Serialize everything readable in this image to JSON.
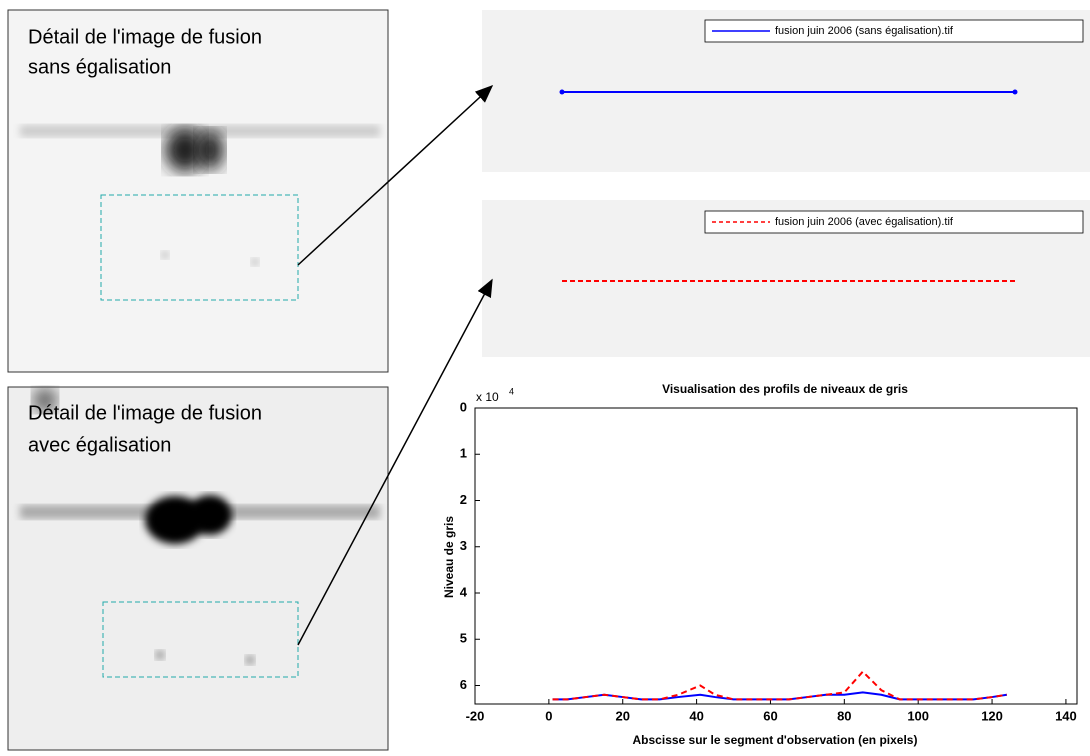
{
  "panels": {
    "top_label": [
      "Détail de l'image de fusion",
      "sans égalisation"
    ],
    "bottom_label": [
      "Détail de l'image de fusion",
      "avec égalisation"
    ],
    "legend_top": "fusion juin 2006 (sans égalisation).tif",
    "legend_bottom": "fusion juin 2006 (avec égalisation).tif"
  },
  "chart_data": {
    "type": "line",
    "title": "Visualisation des profils de niveaux de gris",
    "x_label": "Abscisse sur le segment d'observation (en pixels)",
    "y_label": "Niveau de gris",
    "y_multiplier": "x 10",
    "y_multiplier_exp": "4",
    "x": [
      1,
      5,
      10,
      15,
      20,
      25,
      30,
      35,
      41,
      45,
      50,
      55,
      60,
      65,
      70,
      75,
      80,
      85,
      90,
      95,
      100,
      105,
      110,
      115,
      120,
      124
    ],
    "series": [
      {
        "name": "fusion juin 2006 (sans égalisation).tif",
        "color": "#0000ff",
        "dash": false,
        "values": [
          6.3,
          6.3,
          6.25,
          6.2,
          6.25,
          6.3,
          6.3,
          6.25,
          6.2,
          6.25,
          6.3,
          6.3,
          6.3,
          6.3,
          6.25,
          6.2,
          6.2,
          6.15,
          6.2,
          6.3,
          6.3,
          6.3,
          6.3,
          6.3,
          6.25,
          6.2
        ]
      },
      {
        "name": "fusion juin 2006 (avec égalisation).tif",
        "color": "#ff0000",
        "dash": true,
        "values": [
          6.3,
          6.3,
          6.25,
          6.2,
          6.25,
          6.3,
          6.3,
          6.2,
          6.0,
          6.2,
          6.3,
          6.3,
          6.3,
          6.3,
          6.25,
          6.2,
          6.15,
          5.7,
          6.1,
          6.3,
          6.3,
          6.3,
          6.3,
          6.3,
          6.25,
          6.2
        ]
      }
    ],
    "xlim": [
      -20,
      143
    ],
    "ylim": [
      0,
      6.4
    ],
    "y_reversed": true,
    "xticks": [
      -20,
      0,
      20,
      40,
      60,
      80,
      100,
      120,
      140
    ],
    "yticks": [
      0,
      1,
      2,
      3,
      4,
      5,
      6
    ]
  }
}
